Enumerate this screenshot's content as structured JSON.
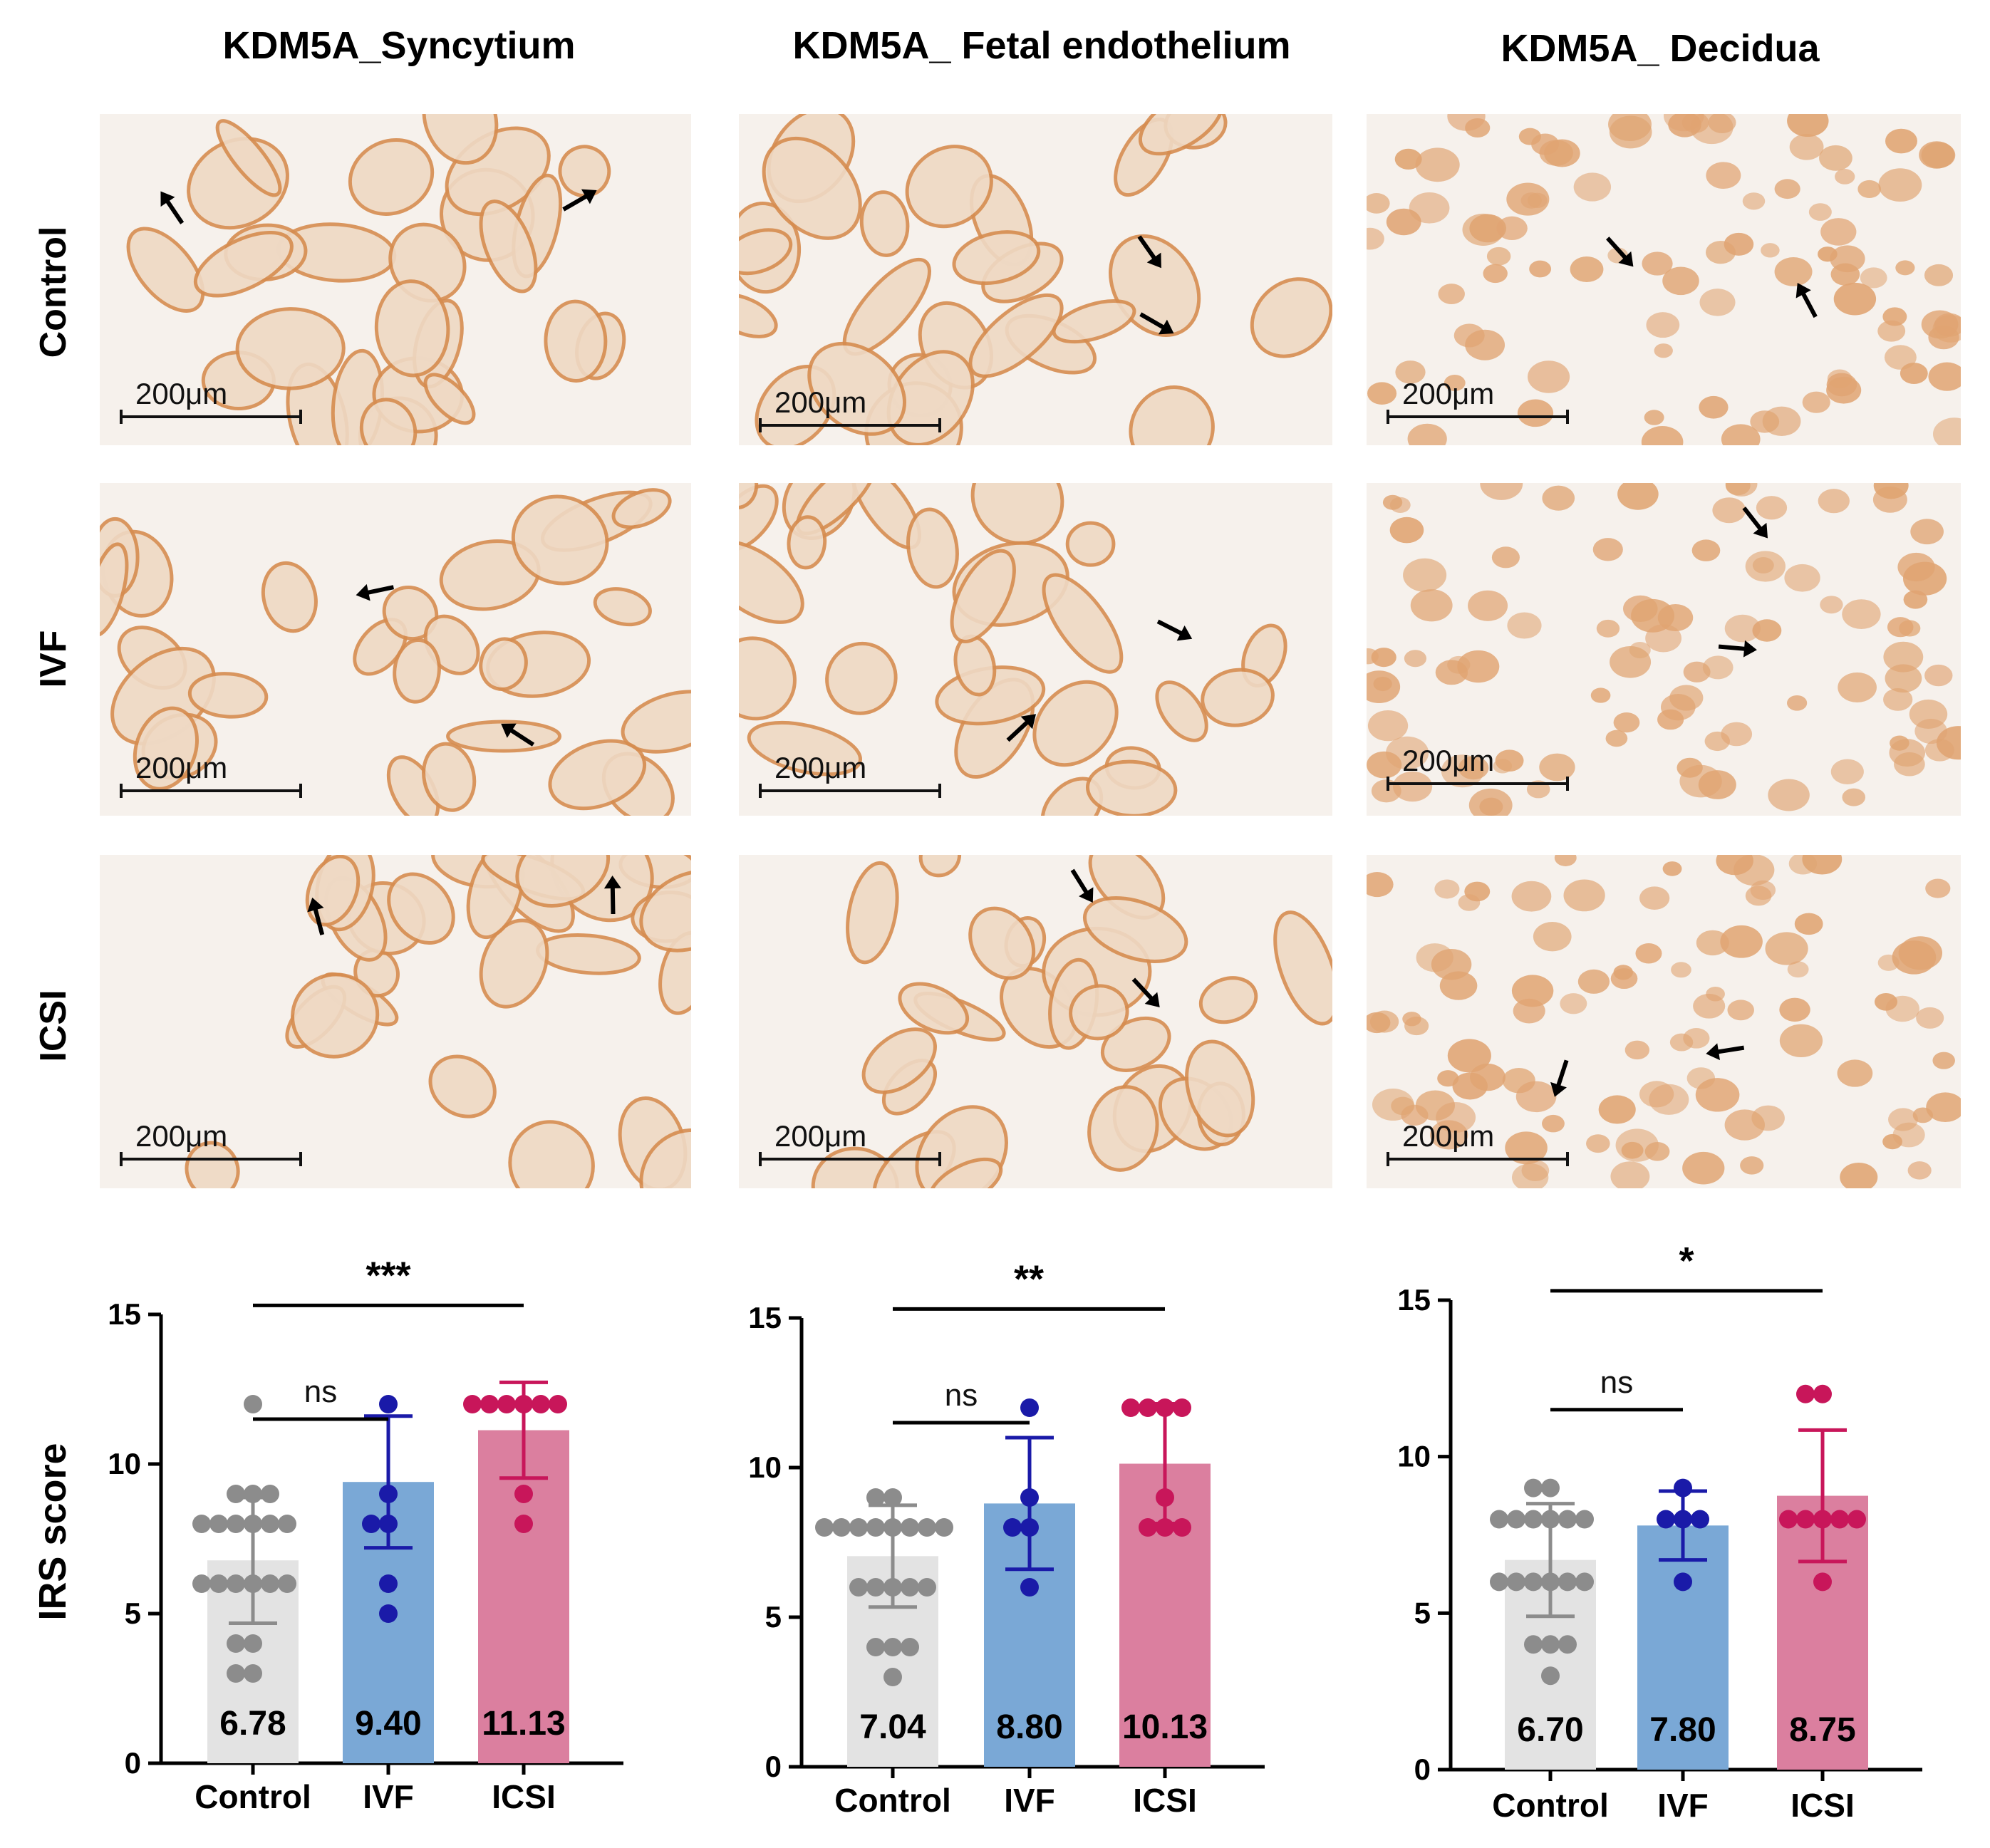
{
  "figure": {
    "column_titles": [
      "KDM5A_Syncytium",
      "KDM5A_ Fetal endothelium",
      "KDM5A_ Decidua"
    ],
    "row_labels": [
      "Control",
      "IVF",
      "ICSI"
    ],
    "scale_bar_label": "200μm",
    "micrograph_description": "immunohistochemistry micrographs, brown KDM5A staining with black arrows"
  },
  "colors": {
    "control_bar": "#e3e3e3",
    "control_dot": "#8c8c8c",
    "ivf_bar": "#7aa8d6",
    "ivf_dot": "#1a1aa8",
    "icsi_bar": "#db7f9f",
    "icsi_dot": "#c8165a",
    "tissue_bg": "#f6f1ec",
    "tissue_stain": "#e0a472"
  },
  "chart_data": [
    {
      "type": "bar",
      "categories": [
        "Control",
        "IVF",
        "ICSI"
      ],
      "values": [
        6.78,
        9.4,
        11.13
      ],
      "value_labels": [
        "6.78",
        "9.40",
        "11.13"
      ],
      "sd": [
        2.1,
        2.2,
        1.6
      ],
      "points": [
        [
          12,
          9,
          9,
          9,
          8,
          8,
          8,
          8,
          8,
          8,
          6,
          6,
          6,
          6,
          6,
          6,
          4,
          4,
          3,
          3
        ],
        [
          12,
          9,
          8,
          8,
          6,
          5
        ],
        [
          12,
          12,
          12,
          12,
          12,
          12,
          9,
          8
        ]
      ],
      "ylabel": "IRS score",
      "ylim": [
        0,
        15
      ],
      "yticks": [
        0,
        5,
        10,
        15
      ],
      "significance": [
        {
          "pair": [
            "Control",
            "IVF"
          ],
          "label": "ns"
        },
        {
          "pair": [
            "Control",
            "ICSI"
          ],
          "label": "***"
        }
      ]
    },
    {
      "type": "bar",
      "categories": [
        "Control",
        "IVF",
        "ICSI"
      ],
      "values": [
        7.04,
        8.8,
        10.13
      ],
      "value_labels": [
        "7.04",
        "8.80",
        "10.13"
      ],
      "sd": [
        1.7,
        2.2,
        2.0
      ],
      "points": [
        [
          9,
          9,
          8,
          8,
          8,
          8,
          8,
          8,
          8,
          8,
          6,
          6,
          6,
          6,
          6,
          4,
          4,
          4,
          3
        ],
        [
          12,
          9,
          8,
          8,
          6
        ],
        [
          12,
          12,
          12,
          12,
          9,
          8,
          8,
          8
        ]
      ],
      "ylabel": "",
      "ylim": [
        0,
        15
      ],
      "yticks": [
        0,
        5,
        10,
        15
      ],
      "significance": [
        {
          "pair": [
            "Control",
            "IVF"
          ],
          "label": "ns"
        },
        {
          "pair": [
            "Control",
            "ICSI"
          ],
          "label": "**"
        }
      ]
    },
    {
      "type": "bar",
      "categories": [
        "Control",
        "IVF",
        "ICSI"
      ],
      "values": [
        6.7,
        7.8,
        8.75
      ],
      "value_labels": [
        "6.70",
        "7.80",
        "8.75"
      ],
      "sd": [
        1.8,
        1.1,
        2.1
      ],
      "points": [
        [
          9,
          9,
          8,
          8,
          8,
          8,
          8,
          8,
          6,
          6,
          6,
          6,
          6,
          6,
          4,
          4,
          4,
          3
        ],
        [
          9,
          8,
          8,
          8,
          6
        ],
        [
          12,
          12,
          8,
          8,
          8,
          8,
          8,
          6
        ]
      ],
      "ylabel": "",
      "ylim": [
        0,
        15
      ],
      "yticks": [
        0,
        5,
        10,
        15
      ],
      "significance": [
        {
          "pair": [
            "Control",
            "IVF"
          ],
          "label": "ns"
        },
        {
          "pair": [
            "Control",
            "ICSI"
          ],
          "label": "*"
        }
      ]
    }
  ]
}
